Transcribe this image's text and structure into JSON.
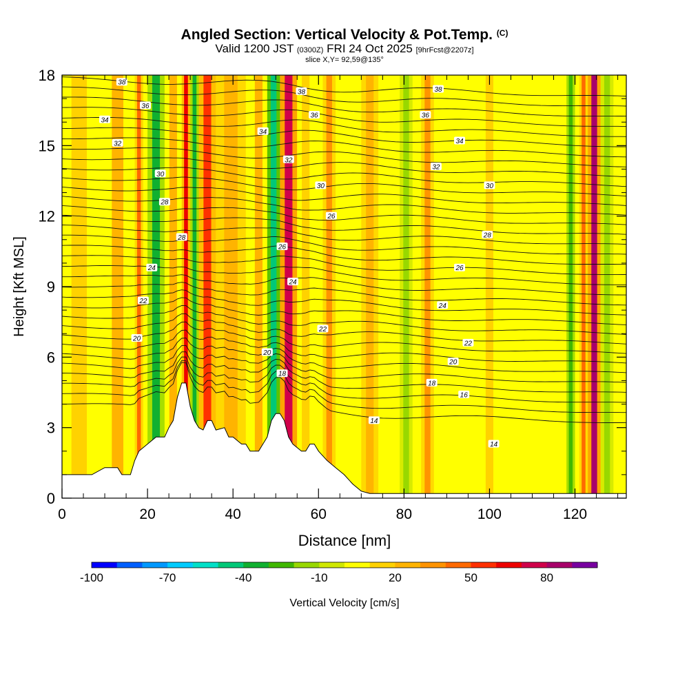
{
  "title": {
    "main": "Angled Section: Vertical Velocity & Pot.Temp.",
    "copyright": "(C)",
    "valid_prefix": "Valid 1200 JST",
    "valid_utc": "(0300Z)",
    "valid_date": "FRI 24 Oct 2025",
    "forecast": "[9hrFcst@2207z]",
    "slice": "slice X,Y= 92,59@135°"
  },
  "chart_data": {
    "type": "heatmap",
    "title": "Angled Section: Vertical Velocity & Pot.Temp.",
    "xlabel": "Distance [nm]",
    "ylabel": "Height [Kft MSL]",
    "xlim": [
      0,
      132
    ],
    "ylim": [
      0,
      18
    ],
    "x_ticks": [
      0,
      20,
      40,
      60,
      80,
      100,
      120
    ],
    "y_ticks": [
      0,
      3,
      6,
      9,
      12,
      15,
      18
    ],
    "colorbar": {
      "label": "Vertical Velocity [cm/s]",
      "range": [
        -100,
        100
      ],
      "tick_values": [
        -100,
        -70,
        -40,
        -10,
        20,
        50,
        80
      ],
      "colors": [
        "#0000ff",
        "#0060ff",
        "#0099ff",
        "#00ccff",
        "#00e0c8",
        "#00c878",
        "#10b030",
        "#40b800",
        "#98d800",
        "#d0e800",
        "#ffff00",
        "#ffd200",
        "#ffb400",
        "#ff9400",
        "#ff6a00",
        "#ff3000",
        "#ee0000",
        "#d0004a",
        "#a8006a",
        "#7800a0"
      ]
    },
    "terrain_kft": [
      [
        0,
        1.0
      ],
      [
        7,
        1.0
      ],
      [
        10,
        1.3
      ],
      [
        13,
        1.3
      ],
      [
        14,
        1.0
      ],
      [
        16,
        1.0
      ],
      [
        17,
        1.6
      ],
      [
        18,
        2.0
      ],
      [
        20,
        2.3
      ],
      [
        22,
        2.6
      ],
      [
        24,
        2.6
      ],
      [
        25,
        3.0
      ],
      [
        26,
        3.3
      ],
      [
        27,
        4.3
      ],
      [
        28,
        4.9
      ],
      [
        29,
        4.9
      ],
      [
        30,
        3.9
      ],
      [
        31,
        3.3
      ],
      [
        32,
        3.0
      ],
      [
        33,
        2.9
      ],
      [
        34,
        3.3
      ],
      [
        35,
        3.3
      ],
      [
        36,
        2.9
      ],
      [
        38,
        3.0
      ],
      [
        39,
        2.6
      ],
      [
        40,
        2.6
      ],
      [
        42,
        2.3
      ],
      [
        43,
        2.3
      ],
      [
        44,
        2.0
      ],
      [
        46,
        2.0
      ],
      [
        47,
        2.3
      ],
      [
        48,
        2.6
      ],
      [
        49,
        3.3
      ],
      [
        50,
        3.6
      ],
      [
        51,
        3.6
      ],
      [
        52,
        3.3
      ],
      [
        53,
        2.6
      ],
      [
        54,
        2.3
      ],
      [
        56,
        2.0
      ],
      [
        57,
        2.0
      ],
      [
        58,
        2.3
      ],
      [
        59,
        2.3
      ],
      [
        60,
        2.0
      ],
      [
        62,
        1.6
      ],
      [
        64,
        1.3
      ],
      [
        66,
        1.0
      ],
      [
        68,
        0.6
      ],
      [
        70,
        0.3
      ],
      [
        72,
        0.2
      ],
      [
        132,
        0.2
      ]
    ],
    "bands": [
      {
        "x": [
          0,
          8
        ],
        "value": 10
      },
      {
        "x": [
          10,
          16
        ],
        "value": 20
      },
      {
        "x": [
          17,
          19
        ],
        "value": 40
      },
      {
        "x": [
          20,
          24
        ],
        "value": -35
      },
      {
        "x": [
          24,
          28
        ],
        "value": 20
      },
      {
        "x": [
          28,
          30
        ],
        "value": 65
      },
      {
        "x": [
          30,
          32
        ],
        "value": -40
      },
      {
        "x": [
          32,
          36
        ],
        "value": 50
      },
      {
        "x": [
          36,
          43
        ],
        "value": 25
      },
      {
        "x": [
          44,
          48
        ],
        "value": 20
      },
      {
        "x": [
          48,
          51
        ],
        "value": -45
      },
      {
        "x": [
          51,
          55
        ],
        "value": 70
      },
      {
        "x": [
          55,
          59
        ],
        "value": 10
      },
      {
        "x": [
          61,
          64
        ],
        "value": 35
      },
      {
        "x": [
          70,
          74
        ],
        "value": 25
      },
      {
        "x": [
          79,
          82
        ],
        "value": -20
      },
      {
        "x": [
          84,
          87
        ],
        "value": 30
      },
      {
        "x": [
          98,
          102
        ],
        "value": 15
      },
      {
        "x": [
          118,
          120
        ],
        "value": -25
      },
      {
        "x": [
          121,
          123
        ],
        "value": 40
      },
      {
        "x": [
          123,
          126
        ],
        "value": 85
      },
      {
        "x": [
          126,
          129
        ],
        "value": -20
      }
    ],
    "theta_labels": [
      {
        "text": "38",
        "x": 14,
        "y": 17.7
      },
      {
        "text": "36",
        "x": 19.5,
        "y": 16.7
      },
      {
        "text": "34",
        "x": 10,
        "y": 16.1
      },
      {
        "text": "32",
        "x": 13,
        "y": 15.1
      },
      {
        "text": "30",
        "x": 23,
        "y": 13.8
      },
      {
        "text": "28",
        "x": 24,
        "y": 12.6
      },
      {
        "text": "28",
        "x": 28,
        "y": 11.1
      },
      {
        "text": "24",
        "x": 21,
        "y": 9.8
      },
      {
        "text": "22",
        "x": 19,
        "y": 8.4
      },
      {
        "text": "20",
        "x": 17.5,
        "y": 6.8
      },
      {
        "text": "34",
        "x": 47,
        "y": 15.6
      },
      {
        "text": "38",
        "x": 56,
        "y": 17.3
      },
      {
        "text": "36",
        "x": 59,
        "y": 16.3
      },
      {
        "text": "32",
        "x": 53,
        "y": 14.4
      },
      {
        "text": "30",
        "x": 60.5,
        "y": 13.3
      },
      {
        "text": "26",
        "x": 63,
        "y": 12.0
      },
      {
        "text": "26",
        "x": 51.5,
        "y": 10.7
      },
      {
        "text": "24",
        "x": 54,
        "y": 9.2
      },
      {
        "text": "22",
        "x": 61,
        "y": 7.2
      },
      {
        "text": "20",
        "x": 48,
        "y": 6.2
      },
      {
        "text": "18",
        "x": 51.5,
        "y": 5.3
      },
      {
        "text": "38",
        "x": 88,
        "y": 17.4
      },
      {
        "text": "36",
        "x": 85,
        "y": 16.3
      },
      {
        "text": "34",
        "x": 93,
        "y": 15.2
      },
      {
        "text": "32",
        "x": 87.5,
        "y": 14.1
      },
      {
        "text": "30",
        "x": 100,
        "y": 13.3
      },
      {
        "text": "28",
        "x": 99.5,
        "y": 11.2
      },
      {
        "text": "26",
        "x": 93,
        "y": 9.8
      },
      {
        "text": "24",
        "x": 89,
        "y": 8.2
      },
      {
        "text": "22",
        "x": 95,
        "y": 6.6
      },
      {
        "text": "20",
        "x": 91.5,
        "y": 5.8
      },
      {
        "text": "18",
        "x": 86.5,
        "y": 4.9
      },
      {
        "text": "16",
        "x": 94,
        "y": 4.4
      },
      {
        "text": "14",
        "x": 73,
        "y": 3.3
      },
      {
        "text": "14",
        "x": 101,
        "y": 2.3
      }
    ]
  }
}
